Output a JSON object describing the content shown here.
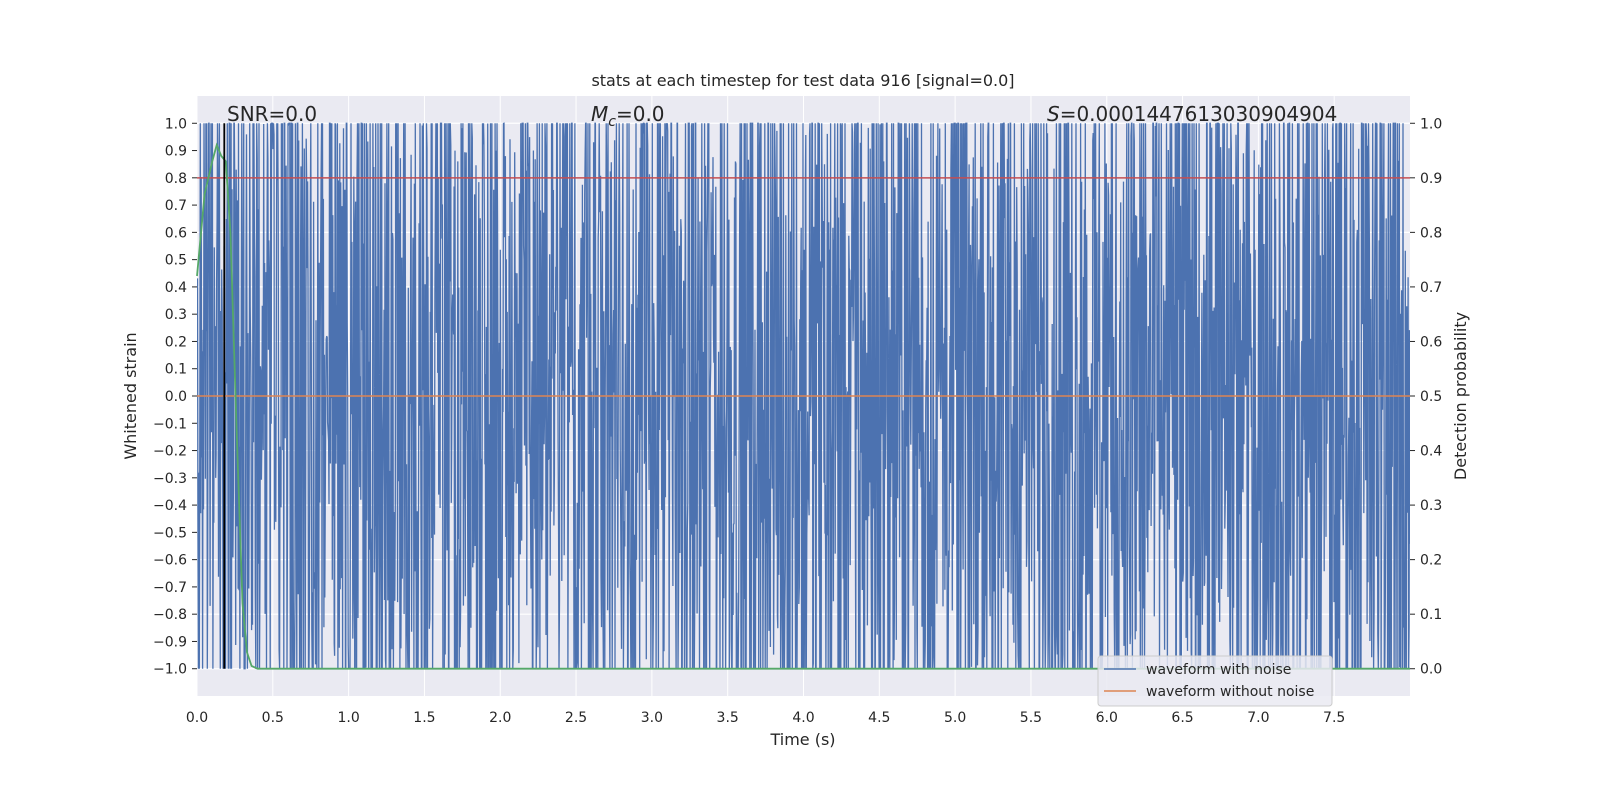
{
  "chart_data": {
    "type": "line",
    "title": "stats at each timestep for test data 916 [signal=0.0]",
    "xlabel": "Time (s)",
    "ylabel_left": "Whitened strain",
    "ylabel_right": "Detection probability",
    "xlim": [
      0.0,
      8.0
    ],
    "ylim_left": [
      -1.1,
      1.1
    ],
    "ylim_right": [
      -0.05,
      1.05
    ],
    "x_ticks": [
      "0.0",
      "0.5",
      "1.0",
      "1.5",
      "2.0",
      "2.5",
      "3.0",
      "3.5",
      "4.0",
      "4.5",
      "5.0",
      "5.5",
      "6.0",
      "6.5",
      "7.0",
      "7.5"
    ],
    "y_left_ticks": [
      "1.0",
      "0.9",
      "0.8",
      "0.7",
      "0.6",
      "0.5",
      "0.4",
      "0.3",
      "0.2",
      "0.1",
      "0.0",
      "−0.1",
      "−0.2",
      "−0.3",
      "−0.4",
      "−0.5",
      "−0.6",
      "−0.7",
      "−0.8",
      "−0.9",
      "−1.0"
    ],
    "y_right_ticks": [
      "1.0",
      "0.9",
      "0.8",
      "0.7",
      "0.6",
      "0.5",
      "0.4",
      "0.3",
      "0.2",
      "0.1",
      "0.0"
    ],
    "grid": true,
    "annotations": {
      "snr": "SNR=0.0",
      "mc_symbol": "M",
      "mc_sub": "c",
      "mc_value": "=0.0",
      "s_symbol": "S",
      "s_value": "=0.0001447613030904904"
    },
    "vertical_marker_x": 0.18,
    "series": [
      {
        "name": "waveform with noise",
        "color": "#4c72b0",
        "description_values": {
          "min": -1.0,
          "max": 1.0,
          "duration_s": 8.0
        }
      },
      {
        "name": "waveform without noise",
        "color": "#dd8452",
        "values_x": [
          0.0,
          8.0
        ],
        "values_y": [
          0.0,
          0.0
        ]
      },
      {
        "axis": "right",
        "color": "#55a868",
        "values_x": [
          0.0,
          0.05,
          0.1,
          0.13,
          0.16,
          0.19,
          0.22,
          0.26,
          0.3,
          0.33,
          0.36,
          0.4,
          1.0,
          3.0,
          5.0,
          7.0,
          8.0
        ],
        "values_y": [
          0.72,
          0.87,
          0.93,
          0.96,
          0.94,
          0.93,
          0.8,
          0.45,
          0.12,
          0.03,
          0.005,
          0.0,
          0.0,
          0.0,
          0.0,
          0.0,
          0.0
        ]
      },
      {
        "axis": "right",
        "color": "#c44e52",
        "values_x": [
          0.0,
          8.0
        ],
        "values_y": [
          0.9,
          0.9
        ]
      }
    ],
    "legend": {
      "placement": "lower-right",
      "entries": [
        "waveform with noise",
        "waveform without noise"
      ]
    }
  },
  "colors": {
    "axes_bg": "#eaeaf2",
    "grid": "#ffffff",
    "noise": "#4c72b0",
    "clean": "#dd8452",
    "prob": "#55a868",
    "threshold": "#c44e52",
    "marker": "#000000"
  }
}
